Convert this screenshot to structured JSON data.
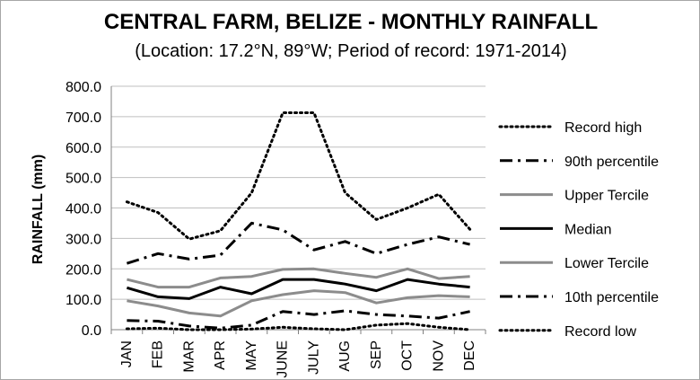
{
  "chart_data": {
    "type": "line",
    "title": "CENTRAL FARM, BELIZE - MONTHLY RAINFALL",
    "subtitle": "(Location: 17.2°N, 89°W; Period of record: 1971-2014)",
    "xlabel": "",
    "ylabel": "RAINFALL (mm)",
    "ylim": [
      0,
      800
    ],
    "yticks": [
      "0.0",
      "100.0",
      "200.0",
      "300.0",
      "400.0",
      "500.0",
      "600.0",
      "700.0",
      "800.0"
    ],
    "grid": true,
    "legend_position": "right",
    "categories": [
      "JAN",
      "FEB",
      "MAR",
      "APR",
      "MAY",
      "JUNE",
      "JULY",
      "AUG",
      "SEP",
      "OCT",
      "NOV",
      "DEC"
    ],
    "series": [
      {
        "name": "Record high",
        "color": "#000000",
        "style": "dotted",
        "values": [
          420,
          385,
          298,
          325,
          450,
          713,
          713,
          450,
          362,
          400,
          445,
          330
        ]
      },
      {
        "name": "90th percentile",
        "color": "#000000",
        "style": "dashdot",
        "values": [
          218,
          250,
          232,
          245,
          350,
          328,
          262,
          290,
          250,
          280,
          305,
          280
        ]
      },
      {
        "name": "Upper Tercile",
        "color": "#8c8c8c",
        "style": "solid",
        "values": [
          165,
          140,
          140,
          170,
          175,
          198,
          200,
          185,
          172,
          200,
          168,
          175
        ]
      },
      {
        "name": "Median",
        "color": "#000000",
        "style": "solid",
        "values": [
          138,
          108,
          102,
          140,
          118,
          165,
          165,
          150,
          128,
          165,
          150,
          140
        ]
      },
      {
        "name": "Lower Tercile",
        "color": "#8c8c8c",
        "style": "solid",
        "values": [
          95,
          78,
          55,
          45,
          95,
          115,
          128,
          122,
          88,
          105,
          112,
          108
        ]
      },
      {
        "name": "10th percentile",
        "color": "#000000",
        "style": "dashdot",
        "values": [
          30,
          28,
          12,
          5,
          15,
          60,
          50,
          62,
          50,
          45,
          38,
          60
        ]
      },
      {
        "name": "Record low",
        "color": "#000000",
        "style": "dotted",
        "values": [
          3,
          5,
          0,
          0,
          2,
          8,
          3,
          0,
          15,
          20,
          8,
          0
        ]
      }
    ]
  }
}
